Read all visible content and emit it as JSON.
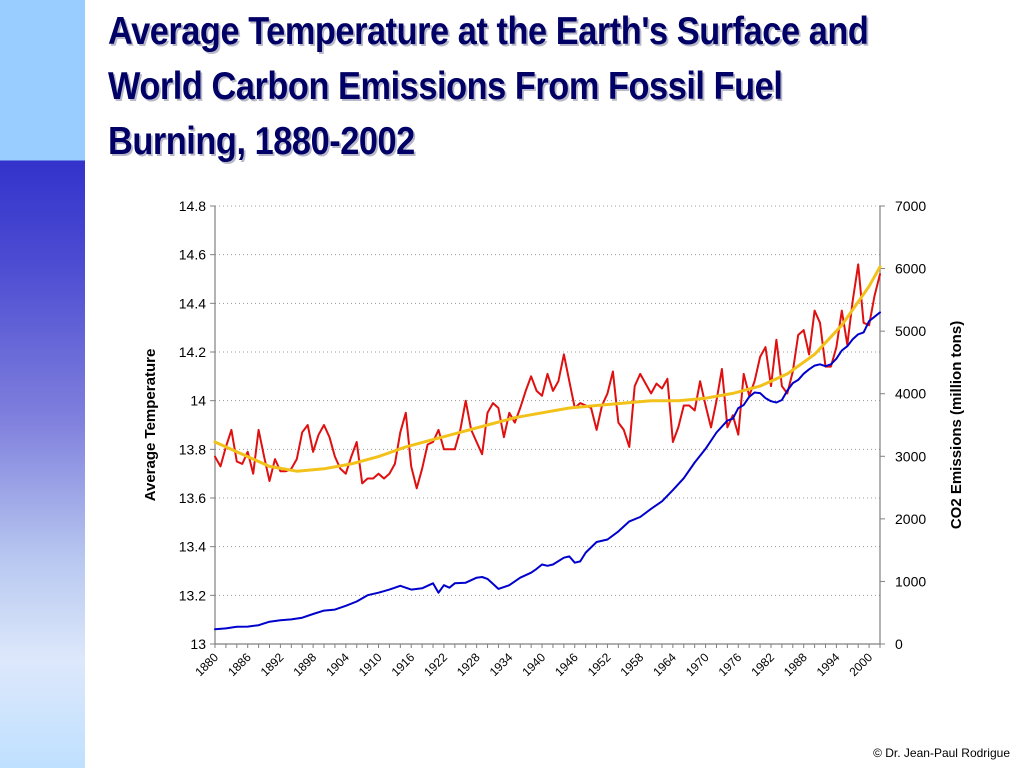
{
  "slide": {
    "title": "Average Temperature at the Earth's Surface and World Carbon Emissions From Fossil Fuel Burning, 1880-2002",
    "copyright": "© Dr. Jean-Paul Rodrigue",
    "colors": {
      "title": "#000066",
      "sidebar_top": "#99ccff",
      "sidebar_mid": "#3333cc"
    }
  },
  "chart_data": {
    "type": "line",
    "title": "",
    "xlabel": "",
    "ylabel": "Average Temperature",
    "y2label": "CO2 Emissions (million tons)",
    "xlim": [
      1880,
      2002
    ],
    "ylim": [
      13,
      14.8
    ],
    "y2lim": [
      0,
      7000
    ],
    "x_ticks": [
      "1880",
      "1886",
      "1892",
      "1898",
      "1904",
      "1910",
      "1916",
      "1922",
      "1928",
      "1934",
      "1940",
      "1946",
      "1952",
      "1958",
      "1964",
      "1970",
      "1976",
      "1982",
      "1988",
      "1994",
      "2000"
    ],
    "y_ticks": [
      "13",
      "13.2",
      "13.4",
      "13.6",
      "13.8",
      "14",
      "14.2",
      "14.4",
      "14.6",
      "14.8"
    ],
    "y2_ticks": [
      "0",
      "1000",
      "2000",
      "3000",
      "4000",
      "5000",
      "6000",
      "7000"
    ],
    "grid": "horizontal dotted",
    "legend": "none",
    "series": [
      {
        "axis": "left",
        "color": "#e01010",
        "x": [
          1880,
          1881,
          1882,
          1883,
          1884,
          1885,
          1886,
          1887,
          1888,
          1889,
          1890,
          1891,
          1892,
          1893,
          1894,
          1895,
          1896,
          1897,
          1898,
          1899,
          1900,
          1901,
          1902,
          1903,
          1904,
          1905,
          1906,
          1907,
          1908,
          1909,
          1910,
          1911,
          1912,
          1913,
          1914,
          1915,
          1916,
          1917,
          1918,
          1919,
          1920,
          1921,
          1922,
          1923,
          1924,
          1925,
          1926,
          1927,
          1928,
          1929,
          1930,
          1931,
          1932,
          1933,
          1934,
          1935,
          1936,
          1937,
          1938,
          1939,
          1940,
          1941,
          1942,
          1943,
          1944,
          1945,
          1946,
          1947,
          1948,
          1949,
          1950,
          1951,
          1952,
          1953,
          1954,
          1955,
          1956,
          1957,
          1958,
          1959,
          1960,
          1961,
          1962,
          1963,
          1964,
          1965,
          1966,
          1967,
          1968,
          1969,
          1970,
          1971,
          1972,
          1973,
          1974,
          1975,
          1976,
          1977,
          1978,
          1979,
          1980,
          1981,
          1982,
          1983,
          1984,
          1985,
          1986,
          1987,
          1988,
          1989,
          1990,
          1991,
          1992,
          1993,
          1994,
          1995,
          1996,
          1997,
          1998,
          1999,
          2000,
          2001,
          2002
        ],
        "values": [
          13.77,
          13.73,
          13.81,
          13.88,
          13.75,
          13.74,
          13.79,
          13.7,
          13.88,
          13.77,
          13.67,
          13.76,
          13.71,
          13.71,
          13.72,
          13.76,
          13.87,
          13.9,
          13.79,
          13.86,
          13.9,
          13.85,
          13.77,
          13.72,
          13.7,
          13.77,
          13.83,
          13.66,
          13.68,
          13.68,
          13.7,
          13.68,
          13.7,
          13.74,
          13.87,
          13.95,
          13.73,
          13.64,
          13.72,
          13.82,
          13.83,
          13.88,
          13.8,
          13.8,
          13.8,
          13.88,
          14.0,
          13.88,
          13.83,
          13.78,
          13.95,
          13.99,
          13.97,
          13.85,
          13.95,
          13.91,
          13.97,
          14.04,
          14.1,
          14.04,
          14.02,
          14.11,
          14.04,
          14.08,
          14.19,
          14.08,
          13.97,
          13.99,
          13.98,
          13.97,
          13.88,
          13.98,
          14.03,
          14.12,
          13.91,
          13.88,
          13.81,
          14.06,
          14.11,
          14.07,
          14.03,
          14.07,
          14.05,
          14.09,
          13.83,
          13.89,
          13.98,
          13.98,
          13.96,
          14.08,
          13.98,
          13.89,
          14.0,
          14.13,
          13.89,
          13.94,
          13.86,
          14.11,
          14.02,
          14.08,
          14.18,
          14.22,
          14.06,
          14.25,
          14.06,
          14.03,
          14.12,
          14.27,
          14.29,
          14.19,
          14.37,
          14.32,
          14.14,
          14.14,
          14.22,
          14.37,
          14.23,
          14.41,
          14.56,
          14.32,
          14.31,
          14.43,
          14.52
        ]
      },
      {
        "axis": "right",
        "color": "#0000cc",
        "x": [
          1880,
          1882,
          1884,
          1886,
          1888,
          1890,
          1892,
          1894,
          1896,
          1898,
          1900,
          1902,
          1904,
          1906,
          1908,
          1910,
          1912,
          1914,
          1916,
          1918,
          1920,
          1921,
          1922,
          1923,
          1924,
          1926,
          1928,
          1929,
          1930,
          1931,
          1932,
          1934,
          1936,
          1938,
          1939,
          1940,
          1941,
          1942,
          1944,
          1945,
          1946,
          1947,
          1948,
          1950,
          1952,
          1954,
          1956,
          1958,
          1960,
          1962,
          1964,
          1966,
          1968,
          1970,
          1972,
          1974,
          1975,
          1976,
          1977,
          1978,
          1979,
          1980,
          1981,
          1982,
          1983,
          1984,
          1985,
          1986,
          1987,
          1988,
          1989,
          1990,
          1991,
          1992,
          1993,
          1994,
          1995,
          1996,
          1997,
          1998,
          1999,
          2000,
          2001,
          2002
        ],
        "values": [
          236,
          250,
          275,
          278,
          300,
          356,
          380,
          393,
          420,
          480,
          534,
          550,
          610,
          680,
          780,
          820,
          870,
          930,
          870,
          890,
          970,
          820,
          940,
          900,
          970,
          980,
          1060,
          1070,
          1040,
          960,
          880,
          940,
          1060,
          1140,
          1200,
          1270,
          1250,
          1270,
          1380,
          1400,
          1300,
          1320,
          1460,
          1630,
          1670,
          1800,
          1960,
          2030,
          2160,
          2280,
          2460,
          2650,
          2900,
          3120,
          3380,
          3570,
          3600,
          3770,
          3820,
          3950,
          4020,
          4010,
          3930,
          3880,
          3860,
          3900,
          4050,
          4170,
          4220,
          4320,
          4390,
          4450,
          4470,
          4440,
          4470,
          4560,
          4690,
          4760,
          4870,
          4950,
          4980,
          5160,
          5230,
          5300
        ]
      },
      {
        "axis": "left",
        "color": "#f2c21a",
        "x": [
          1880,
          1885,
          1890,
          1895,
          1900,
          1905,
          1910,
          1915,
          1920,
          1925,
          1930,
          1935,
          1940,
          1945,
          1950,
          1955,
          1960,
          1965,
          1970,
          1975,
          1980,
          1985,
          1990,
          1995,
          2000,
          2002
        ],
        "values": [
          13.83,
          13.78,
          13.73,
          13.71,
          13.72,
          13.74,
          13.77,
          13.81,
          13.84,
          13.87,
          13.9,
          13.93,
          13.95,
          13.97,
          13.98,
          13.99,
          14.0,
          14.0,
          14.01,
          14.03,
          14.06,
          14.11,
          14.19,
          14.31,
          14.47,
          14.55
        ]
      }
    ]
  }
}
